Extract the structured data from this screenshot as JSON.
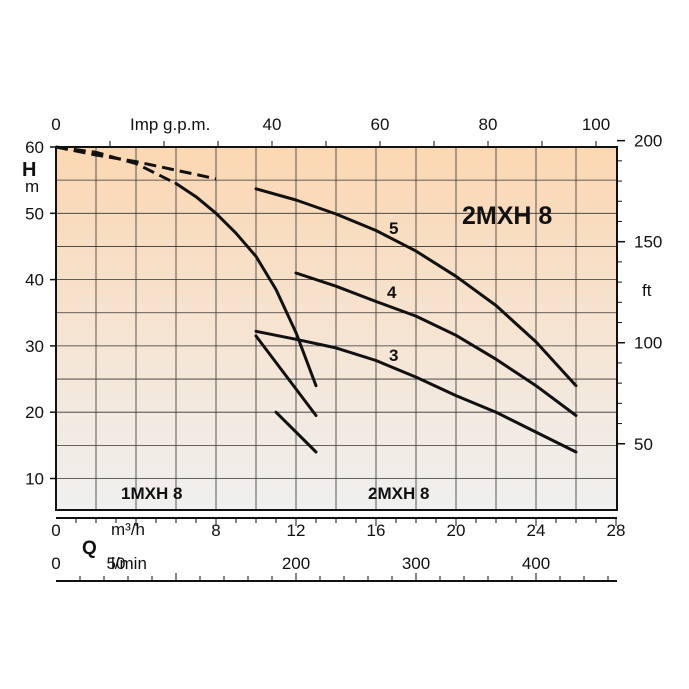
{
  "chart_data": {
    "type": "line",
    "title": "2MXH 8",
    "left_axis": {
      "label_top": "H",
      "label_bottom": "m",
      "ylim": [
        5,
        60
      ],
      "ticks": [
        60,
        50,
        40,
        30,
        20,
        10
      ]
    },
    "right_axis": {
      "label": "ft",
      "ticks": [
        200,
        150,
        100,
        50
      ]
    },
    "top_axis": {
      "label": "Imp g.p.m.",
      "ticks": [
        0,
        40,
        60,
        80,
        100
      ]
    },
    "bottom_axis_m3h": {
      "label": "m³/h",
      "xlim": [
        0,
        28
      ],
      "ticks": [
        0,
        8,
        12,
        16,
        20,
        24,
        28
      ]
    },
    "bottom_axis_lmin": {
      "label": "l/min",
      "ticks": [
        0,
        50,
        200,
        300,
        400
      ]
    },
    "q_label": "Q",
    "region_labels": [
      "1MXH 8",
      "2MXH 8"
    ],
    "series": [
      {
        "name": "5",
        "x": [
          0,
          2,
          4,
          6,
          8,
          10,
          12,
          14,
          16,
          18,
          20,
          22,
          24,
          26
        ],
        "y": [
          60,
          58.8,
          57.8,
          56.5,
          55.2,
          53.7,
          52,
          49.9,
          47.4,
          44.3,
          40.5,
          36.1,
          30.6,
          24
        ],
        "dashed_until": 9
      },
      {
        "name": "4",
        "x": [
          12,
          14,
          16,
          18,
          20,
          22,
          24,
          26
        ],
        "y": [
          41,
          39,
          36.7,
          34.5,
          31.6,
          28,
          24,
          19.5
        ]
      },
      {
        "name": "3",
        "x": [
          10,
          12,
          14,
          16,
          18,
          20,
          22,
          24,
          26
        ],
        "y": [
          32.2,
          31,
          29.7,
          27.8,
          25.3,
          22.5,
          20,
          17,
          14
        ]
      },
      {
        "name": "",
        "x": [
          0,
          2,
          4,
          6,
          7,
          8,
          9,
          10,
          11,
          12,
          13
        ],
        "y": [
          60,
          59.2,
          57.5,
          54.5,
          52.5,
          50,
          47,
          43.5,
          38.5,
          32,
          24
        ],
        "dashed_until": 6
      },
      {
        "name": "",
        "x": [
          10,
          11,
          12,
          13
        ],
        "y": [
          31.5,
          27.5,
          23.5,
          19.5
        ]
      },
      {
        "name": "",
        "x": [
          11,
          12,
          13
        ],
        "y": [
          20,
          17,
          14
        ]
      }
    ],
    "series_labels": [
      "5",
      "4",
      "3"
    ],
    "grid": true,
    "background_gradient": [
      "#fbd7b2",
      "#f0f0f0"
    ]
  }
}
